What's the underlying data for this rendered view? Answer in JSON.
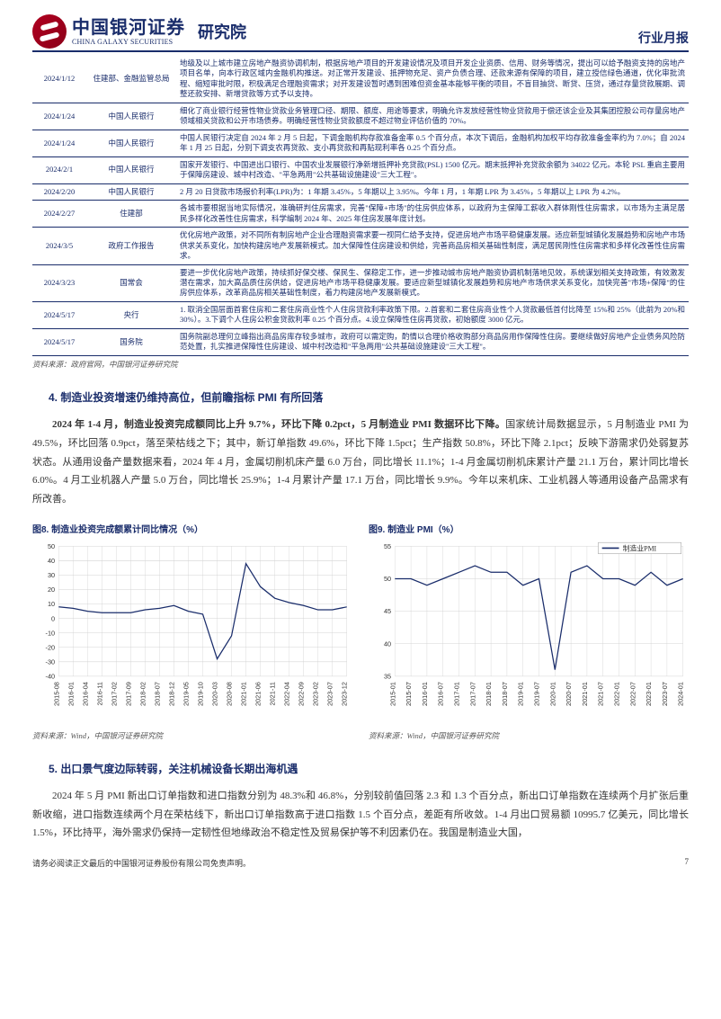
{
  "header": {
    "company_cn": "中国银河证券",
    "company_en": "CHINA GALAXY SECURITIES",
    "institute": "研究院",
    "report_type": "行业月报"
  },
  "policy_table": {
    "rows": [
      {
        "date": "2024/1/12",
        "org": "住建部、金融监管总局",
        "desc": "地级及以上城市建立房地产融资协调机制，根据房地产项目的开发建设情况及项目开发企业资质、信用、财务等情况，提出可以给予融资支持的房地产项目名单，向本行政区域内金融机构推送。对正常开发建设、抵押物充足、资产负债合理、还款来源有保障的项目，建立授信绿色通道，优化审批流程、缩短审批时限，积极满足合理融资需求；对开发建设暂时遇到困难但资金基本能够平衡的项目，不盲目抽贷、断贷、压贷，通过存量贷款展期、调整还款安排、新增贷款等方式予以支持。"
      },
      {
        "date": "2024/1/24",
        "org": "中国人民银行",
        "desc": "细化了商业银行经营性物业贷款业务管理口径、期限、额度、用途等要求，明确允许发放经营性物业贷款用于偿还该企业及其集团控股公司存量房地产领域相关贷款和公开市场债券。明确经营性物业贷款额度不超过物业评估价值的 70%。"
      },
      {
        "date": "2024/1/24",
        "org": "中国人民银行",
        "desc": "中国人民银行决定自 2024 年 2 月 5 日起，下调金融机构存款准备金率 0.5 个百分点，本次下调后，金融机构加权平均存款准备金率约为 7.0%；自 2024 年 1 月 25 日起，分别下调支农再贷款、支小再贷款和再贴现利率各 0.25 个百分点。"
      },
      {
        "date": "2024/2/1",
        "org": "中国人民银行",
        "desc": "国家开发银行、中国进出口银行、中国农业发展银行净新增抵押补充贷款(PSL) 1500 亿元。期末抵押补充贷款余额为 34022 亿元。本轮 PSL 重启主要用于保障房建设、城中村改造、\"平急两用\"公共基础设施建设\"三大工程\"。"
      },
      {
        "date": "2024/2/20",
        "org": "中国人民银行",
        "desc": "2 月 20 日贷款市场报价利率(LPR)为：1 年期 3.45%，5 年期以上 3.95%。今年 1 月，1 年期 LPR 为 3.45%，5 年期以上 LPR 为 4.2%。"
      },
      {
        "date": "2024/2/27",
        "org": "住建部",
        "desc": "各城市要根据当地实际情况，准确研判住房需求，完善\"保障+市场\"的住房供应体系，以政府为主保障工薪收入群体刚性住房需求，以市场为主满足居民多样化改善性住房需求，科学编制 2024 年、2025 年住房发展年度计划。"
      },
      {
        "date": "2024/3/5",
        "org": "政府工作报告",
        "desc": "优化房地产政策，对不同所有制房地产企业合理融资需求要一视同仁给予支持，促进房地产市场平稳健康发展。适应新型城镇化发展趋势和房地产市场供求关系变化，加快构建房地产发展新模式。加大保障性住房建设和供给，完善商品房相关基础性制度，满足居民刚性住房需求和多样化改善性住房需求。"
      },
      {
        "date": "2024/3/23",
        "org": "国常会",
        "desc": "要进一步优化房地产政策，持续抓好保交楼、保民生、保稳定工作，进一步推动城市房地产融资协调机制落地见效，系统谋划相关支持政策，有效激发潜在需求，加大高品质住房供给，促进房地产市场平稳健康发展。要适应新型城镇化发展趋势和房地产市场供求关系变化，加快完善\"市场+保障\"的住房供应体系，改革商品房相关基础性制度，着力构建房地产发展新模式。"
      },
      {
        "date": "2024/5/17",
        "org": "央行",
        "desc": "1. 取消全国层面首套住房和二套住房商业性个人住房贷款利率政策下限。2.首套和二套住房商业性个人贷款最低首付比降至 15%和 25%（此前为 20%和 30%）。3.下调个人住房公积金贷款利率 0.25 个百分点。4.设立保障性住房再贷款，初始额度 3000 亿元。"
      },
      {
        "date": "2024/5/17",
        "org": "国务院",
        "desc": "国务院副总理何立峰指出商品房库存较多城市，政府可以需定购，酌情以合理价格收购部分商品房用作保障性住房。要继续做好房地产企业债务风险防范处置，扎实推进保障性住房建设、城中村改造和\"平急两用\"公共基础设施建设\"三大工程\"。"
      }
    ],
    "source": "资料来源：政府官网，中国银河证券研究院"
  },
  "section4": {
    "heading": "4. 制造业投资增速仍维持高位，但前瞻指标 PMI 有所回落",
    "para_lead": "2024 年 1-4 月，制造业投资完成额同比上升 9.7%，环比下降 0.2pct，5 月制造业 PMI 数据环比下降。",
    "para_body": "国家统计局数据显示，5 月制造业 PMI 为 49.5%，环比回落 0.9pct，落至荣枯线之下；其中，新订单指数 49.6%，环比下降 1.5pct；生产指数 50.8%，环比下降 2.1pct；反映下游需求仍处弱复苏状态。从通用设备产量数据来看，2024 年 4 月，金属切削机床产量 6.0 万台，同比增长 11.1%；1-4 月金属切削机床累计产量 21.1 万台，累计同比增长 6.0%。4 月工业机器人产量 5.0 万台，同比增长 25.9%；1-4 月累计产量 17.1 万台，同比增长 9.9%。今年以来机床、工业机器人等通用设备产品需求有所改善。"
  },
  "chart8": {
    "title": "图8.  制造业投资完成额累计同比情况（%）",
    "type": "line",
    "x_labels": [
      "2015-08",
      "2016-01",
      "2016-04",
      "2016-11",
      "2017-02",
      "2017-09",
      "2018-02",
      "2018-07",
      "2018-12",
      "2019-05",
      "2019-10",
      "2020-03",
      "2020-08",
      "2021-01",
      "2021-06",
      "2021-11",
      "2022-04",
      "2022-09",
      "2023-02",
      "2023-07",
      "2023-12"
    ],
    "values": [
      8,
      7,
      5,
      4,
      4,
      4,
      6,
      7,
      9,
      5,
      3,
      -28,
      -12,
      38,
      22,
      14,
      11,
      9,
      6,
      6,
      8
    ],
    "ylim": [
      -40,
      50
    ],
    "ytick_step": 10,
    "line_color": "#1a2d6b",
    "grid_color": "#d4d4d4",
    "axis_fontsize": 7,
    "background_color": "#ffffff",
    "line_width": 1.2,
    "source": "资料来源：Wind，中国银河证券研究院"
  },
  "chart9": {
    "title": "图9.  制造业 PMI（%）",
    "legend_label": "制造业PMI",
    "type": "line",
    "x_labels": [
      "2015-01",
      "2015-07",
      "2016-01",
      "2016-07",
      "2017-01",
      "2017-07",
      "2018-01",
      "2018-07",
      "2019-01",
      "2019-07",
      "2020-01",
      "2020-07",
      "2021-01",
      "2021-07",
      "2022-01",
      "2022-07",
      "2023-01",
      "2023-07",
      "2024-01"
    ],
    "values": [
      50,
      50,
      49,
      50,
      51,
      52,
      51,
      51,
      49,
      50,
      36,
      51,
      52,
      50,
      50,
      49,
      51,
      49,
      50
    ],
    "dip_index": 10,
    "dip_value": 36,
    "ylim": [
      35,
      55
    ],
    "ytick_step": 5,
    "line_color": "#1a2d6b",
    "grid_color": "#d4d4d4",
    "axis_fontsize": 7,
    "background_color": "#ffffff",
    "line_width": 1.2,
    "source": "资料来源：Wind，中国银河证券研究院"
  },
  "section5": {
    "heading": "5. 出口景气度边际转弱，关注机械设备长期出海机遇",
    "para": "2024 年 5 月 PMI 新出口订单指数和进口指数分别为 48.3%和 46.8%，分别较前值回落 2.3 和 1.3 个百分点，新出口订单指数在连续两个月扩张后重新收缩，进口指数连续两个月在荣枯线下，新出口订单指数高于进口指数 1.5 个百分点，差距有所收敛。1-4 月出口贸易额 10995.7 亿美元，同比增长 1.5%，环比持平，海外需求仍保持一定韧性但地缘政治不稳定性及贸易保护等不利因素仍在。我国是制造业大国，"
  },
  "footer": {
    "disclaimer": "请务必阅读正文最后的中国银河证券股份有限公司免责声明。",
    "page": "7"
  },
  "colors": {
    "navy": "#1a2d6b",
    "red": "#b00020"
  }
}
